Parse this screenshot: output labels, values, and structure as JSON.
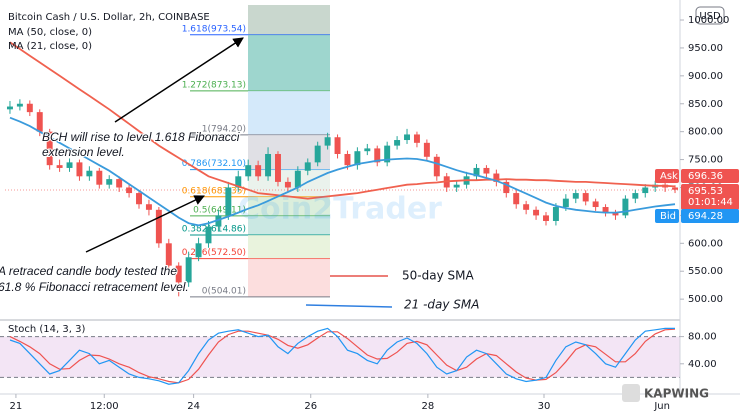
{
  "chart_data": {
    "type": "candlestick",
    "title": "Bitcoin Cash / U.S. Dollar, 2h, COINBASE",
    "currency": "USD",
    "x": [
      0,
      1,
      2,
      3,
      4,
      5,
      6,
      7,
      8,
      9,
      10,
      11,
      12,
      13,
      14,
      15,
      16,
      17,
      18,
      19,
      20,
      21,
      22,
      23,
      24,
      25,
      26,
      27,
      28,
      29,
      30,
      31,
      32,
      33,
      34,
      35,
      36,
      37,
      38,
      39,
      40,
      41,
      42,
      43,
      44,
      45,
      46,
      47,
      48,
      49,
      50,
      51,
      52,
      53,
      54,
      55,
      56,
      57,
      58,
      59,
      60,
      61,
      62,
      63,
      64,
      65,
      66,
      67
    ],
    "xlim": [
      -0.5,
      67.5
    ],
    "xticks": [
      {
        "value": 0.6,
        "label": "21"
      },
      {
        "value": 9.5,
        "label": "12:00"
      },
      {
        "value": 18.5,
        "label": "24"
      },
      {
        "value": 30.3,
        "label": "26"
      },
      {
        "value": 42.1,
        "label": "28"
      },
      {
        "value": 53.8,
        "label": "30"
      },
      {
        "value": 65.7,
        "label": "Jun"
      }
    ],
    "ylim": [
      466.2,
      1026.9
    ],
    "yticks": [
      {
        "value": 500,
        "label": "500.00"
      },
      {
        "value": 550,
        "label": "550.00"
      },
      {
        "value": 600,
        "label": "600.00"
      },
      {
        "value": 650,
        "label": "650.00"
      },
      {
        "value": 700,
        "label": "700.00"
      },
      {
        "value": 750,
        "label": "750.00"
      },
      {
        "value": 800,
        "label": "800.00"
      },
      {
        "value": 850,
        "label": "850.00"
      },
      {
        "value": 900,
        "label": "900.00"
      },
      {
        "value": 950,
        "label": "950.00"
      },
      {
        "value": 1000,
        "label": "1000.00"
      }
    ],
    "up_color": "#26a69a",
    "down_color": "#ef5350",
    "open": [
      840,
      845,
      850,
      835,
      800,
      740,
      735,
      745,
      720,
      730,
      705,
      715,
      700,
      690,
      670,
      660,
      600,
      560,
      530,
      575,
      600,
      630,
      650,
      700,
      720,
      740,
      720,
      760,
      710,
      700,
      730,
      745,
      775,
      790,
      760,
      740,
      765,
      770,
      745,
      775,
      785,
      795,
      780,
      755,
      720,
      700,
      705,
      720,
      735,
      725,
      710,
      690,
      670,
      660,
      650,
      640,
      665,
      680,
      690,
      675,
      665,
      655,
      650,
      680,
      690,
      700,
      705,
      700
    ],
    "high": [
      855,
      858,
      856,
      840,
      805,
      750,
      752,
      750,
      738,
      735,
      722,
      720,
      706,
      695,
      678,
      665,
      608,
      566,
      585,
      610,
      640,
      660,
      710,
      730,
      750,
      748,
      772,
      765,
      718,
      738,
      752,
      782,
      798,
      795,
      766,
      772,
      778,
      775,
      782,
      792,
      805,
      800,
      786,
      760,
      726,
      712,
      728,
      742,
      740,
      732,
      715,
      696,
      676,
      666,
      656,
      672,
      688,
      696,
      695,
      680,
      670,
      660,
      686,
      696,
      706,
      712,
      710,
      704
    ],
    "low": [
      832,
      838,
      828,
      792,
      732,
      728,
      728,
      712,
      712,
      698,
      698,
      692,
      682,
      662,
      650,
      592,
      552,
      505,
      522,
      568,
      592,
      622,
      642,
      692,
      712,
      712,
      712,
      702,
      692,
      692,
      722,
      738,
      768,
      752,
      732,
      732,
      758,
      738,
      738,
      768,
      778,
      772,
      748,
      712,
      692,
      692,
      698,
      712,
      718,
      702,
      682,
      662,
      652,
      642,
      632,
      632,
      658,
      672,
      668,
      658,
      648,
      642,
      645,
      672,
      682,
      692,
      692,
      690
    ],
    "close": [
      845,
      850,
      835,
      800,
      740,
      735,
      745,
      720,
      730,
      705,
      715,
      700,
      690,
      670,
      660,
      600,
      560,
      530,
      575,
      600,
      630,
      650,
      700,
      720,
      740,
      720,
      760,
      710,
      700,
      730,
      745,
      775,
      790,
      760,
      740,
      765,
      770,
      745,
      775,
      785,
      795,
      780,
      755,
      720,
      700,
      705,
      720,
      735,
      725,
      710,
      690,
      670,
      660,
      650,
      640,
      665,
      680,
      690,
      675,
      665,
      655,
      650,
      680,
      690,
      700,
      705,
      700,
      696
    ],
    "series": [
      {
        "name": "MA (50, close, 0)",
        "color": "#f0614f",
        "values": [
          960,
          948,
          936,
          924,
          912,
          900,
          888,
          876,
          864,
          852,
          840,
          827,
          814,
          801,
          788,
          775,
          764,
          753,
          742,
          731,
          720,
          714,
          708,
          702,
          696,
          690,
          688,
          686,
          684,
          682,
          680,
          682,
          684,
          686,
          688,
          690,
          693,
          696,
          699,
          702,
          705,
          706,
          708,
          709,
          711,
          712,
          713,
          713,
          714,
          714,
          715,
          714,
          714,
          713,
          713,
          712,
          711,
          710,
          710,
          709,
          708,
          707,
          706,
          705,
          704,
          703,
          703,
          702
        ]
      },
      {
        "name": "MA (21, close, 0)",
        "color": "#3a9bdc",
        "values": [
          825,
          818,
          810,
          800,
          790,
          780,
          770,
          760,
          750,
          740,
          730,
          718,
          706,
          694,
          682,
          670,
          658,
          646,
          636,
          632,
          636,
          642,
          648,
          655,
          662,
          668,
          676,
          684,
          692,
          700,
          710,
          718,
          726,
          732,
          737,
          742,
          745,
          748,
          750,
          751,
          752,
          751,
          748,
          743,
          737,
          731,
          726,
          722,
          717,
          712,
          705,
          697,
          689,
          681,
          673,
          667,
          663,
          660,
          658,
          656,
          655,
          655,
          657,
          660,
          663,
          666,
          668,
          670
        ]
      }
    ],
    "fibonacci": [
      {
        "label": "1.618(973.54)",
        "value": 973.54,
        "color": "#2962ff",
        "fill": "#b7c9bd"
      },
      {
        "label": "1.272(873.13)",
        "value": 873.13,
        "color": "#4caf50",
        "fill": "#7ec8bd"
      },
      {
        "label": "1(794.20)",
        "value": 794.2,
        "color": "#787b86",
        "fill": "#c6e2f8"
      },
      {
        "label": "0.786(732.10)",
        "value": 732.1,
        "color": "#2196f3",
        "fill": "#d6d6dc"
      },
      {
        "label": "0.618(683.35)",
        "value": 683.35,
        "color": "#ff9800",
        "fill": "#e3eee6"
      },
      {
        "label": "0.5(649.11)",
        "value": 649.11,
        "color": "#4caf50",
        "fill": "#cfe8d0"
      },
      {
        "label": "0.382(614.86)",
        "value": 614.86,
        "color": "#009688",
        "fill": "#b8e0da"
      },
      {
        "label": "0.236(572.50)",
        "value": 572.5,
        "color": "#f44336",
        "fill": "#e1efd2"
      },
      {
        "label": "0(504.01)",
        "value": 504.01,
        "color": "#787b86",
        "fill": "#fbd3d3"
      }
    ],
    "annotations": [
      {
        "lines": [
          "BCH will rise to level 1.618 Fibonacci",
          "extension level."
        ]
      },
      {
        "lines": [
          "A retraced candle body  tested the",
          "61.8 % Fibonacci retracement level."
        ]
      }
    ],
    "sma_labels": [
      {
        "text": "50-day SMA",
        "color": "#e5534b"
      },
      {
        "text": "21 -day SMA",
        "color": "#2f7fe0"
      }
    ],
    "price_labels": {
      "ask": {
        "label": "Ask",
        "value": 696.36,
        "color": "#ef5350"
      },
      "last": {
        "value": 695.53,
        "countdown": "01:01:44",
        "color": "#ef5350"
      },
      "bid": {
        "label": "Bid",
        "value": 694.28,
        "color": "#2196f3"
      }
    },
    "watermark": "Coin2Trader",
    "brand": "KAPWING",
    "stoch": {
      "title": "Stoch (14, 3, 3)",
      "ylim": [
        0,
        100
      ],
      "yticks": [
        {
          "value": 80,
          "label": "80.00"
        },
        {
          "value": 40,
          "label": "40.00"
        }
      ],
      "bands": [
        20,
        80
      ],
      "k_color": "#2196f3",
      "d_color": "#ef5350",
      "k": [
        75,
        70,
        55,
        40,
        25,
        30,
        45,
        60,
        55,
        40,
        45,
        35,
        25,
        20,
        18,
        15,
        10,
        12,
        30,
        55,
        75,
        85,
        88,
        90,
        85,
        80,
        82,
        65,
        55,
        70,
        80,
        88,
        92,
        80,
        60,
        55,
        45,
        40,
        60,
        72,
        78,
        70,
        55,
        35,
        25,
        30,
        50,
        60,
        55,
        40,
        25,
        18,
        14,
        16,
        20,
        45,
        65,
        72,
        68,
        55,
        40,
        35,
        55,
        75,
        88,
        90,
        92,
        92
      ],
      "d": [
        80,
        73,
        65,
        55,
        40,
        32,
        33,
        45,
        53,
        52,
        47,
        40,
        35,
        27,
        21,
        18,
        14,
        12,
        17,
        32,
        53,
        72,
        83,
        88,
        88,
        85,
        82,
        76,
        67,
        63,
        68,
        78,
        87,
        87,
        77,
        65,
        53,
        47,
        48,
        57,
        70,
        73,
        68,
        53,
        38,
        30,
        35,
        47,
        55,
        52,
        40,
        28,
        19,
        16,
        17,
        27,
        43,
        61,
        68,
        65,
        54,
        43,
        43,
        55,
        73,
        84,
        90,
        91
      ]
    }
  }
}
